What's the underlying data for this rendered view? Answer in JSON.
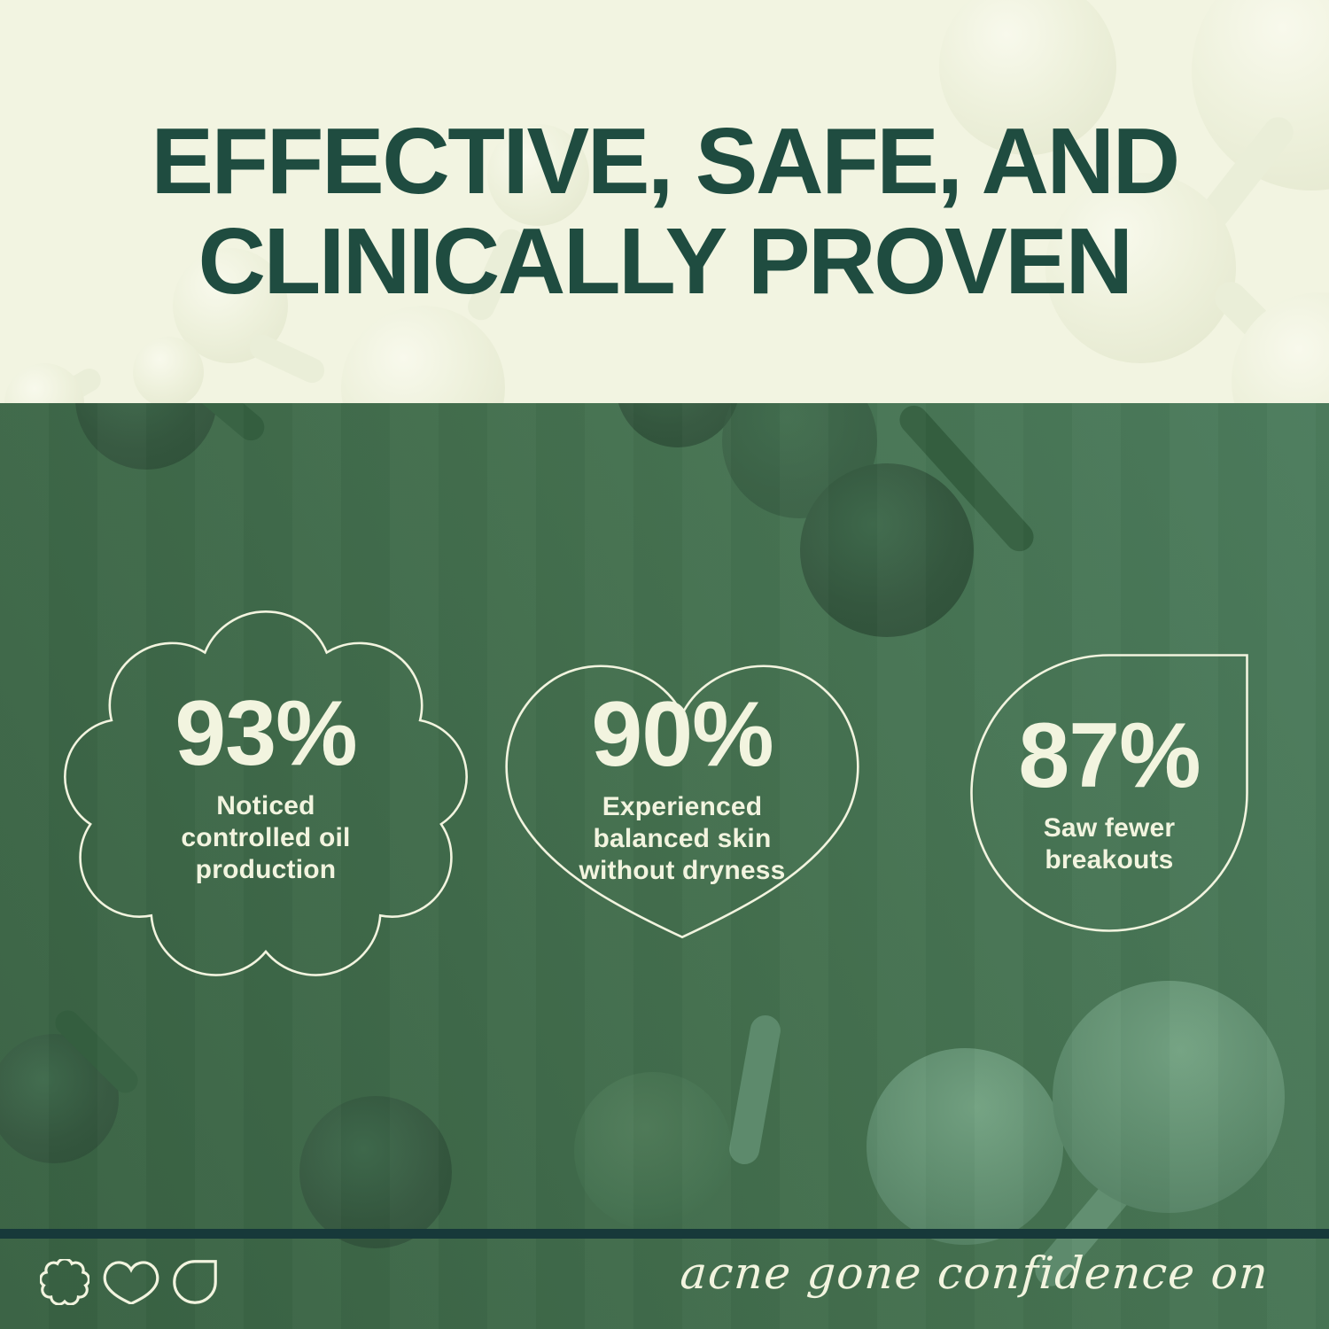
{
  "header": {
    "title_line1": "EFFECTIVE, SAFE, AND",
    "title_line2": "CLINICALLY PROVEN"
  },
  "stats": [
    {
      "shape": "cloud",
      "value": "93%",
      "caption": "Noticed controlled oil production",
      "caption_lines": [
        "Noticed",
        "controlled oil",
        "production"
      ]
    },
    {
      "shape": "heart",
      "value": "90%",
      "caption": "Experienced balanced skin without dryness",
      "caption_lines": [
        "Experienced",
        "balanced skin",
        "without dryness"
      ]
    },
    {
      "shape": "drop",
      "value": "87%",
      "caption": "Saw fewer breakouts",
      "caption_lines": [
        "Saw fewer",
        "breakouts"
      ]
    }
  ],
  "footer": {
    "tagline": "acne gone confidence on",
    "icons": [
      "cloud-icon",
      "heart-icon",
      "drop-icon"
    ]
  },
  "colors": {
    "cream": "#F2F4E1",
    "heading_green": "#1F4C40",
    "background_green": "#44704F",
    "divider_teal": "#17393A",
    "outline_cream": "#F2F4DF"
  }
}
